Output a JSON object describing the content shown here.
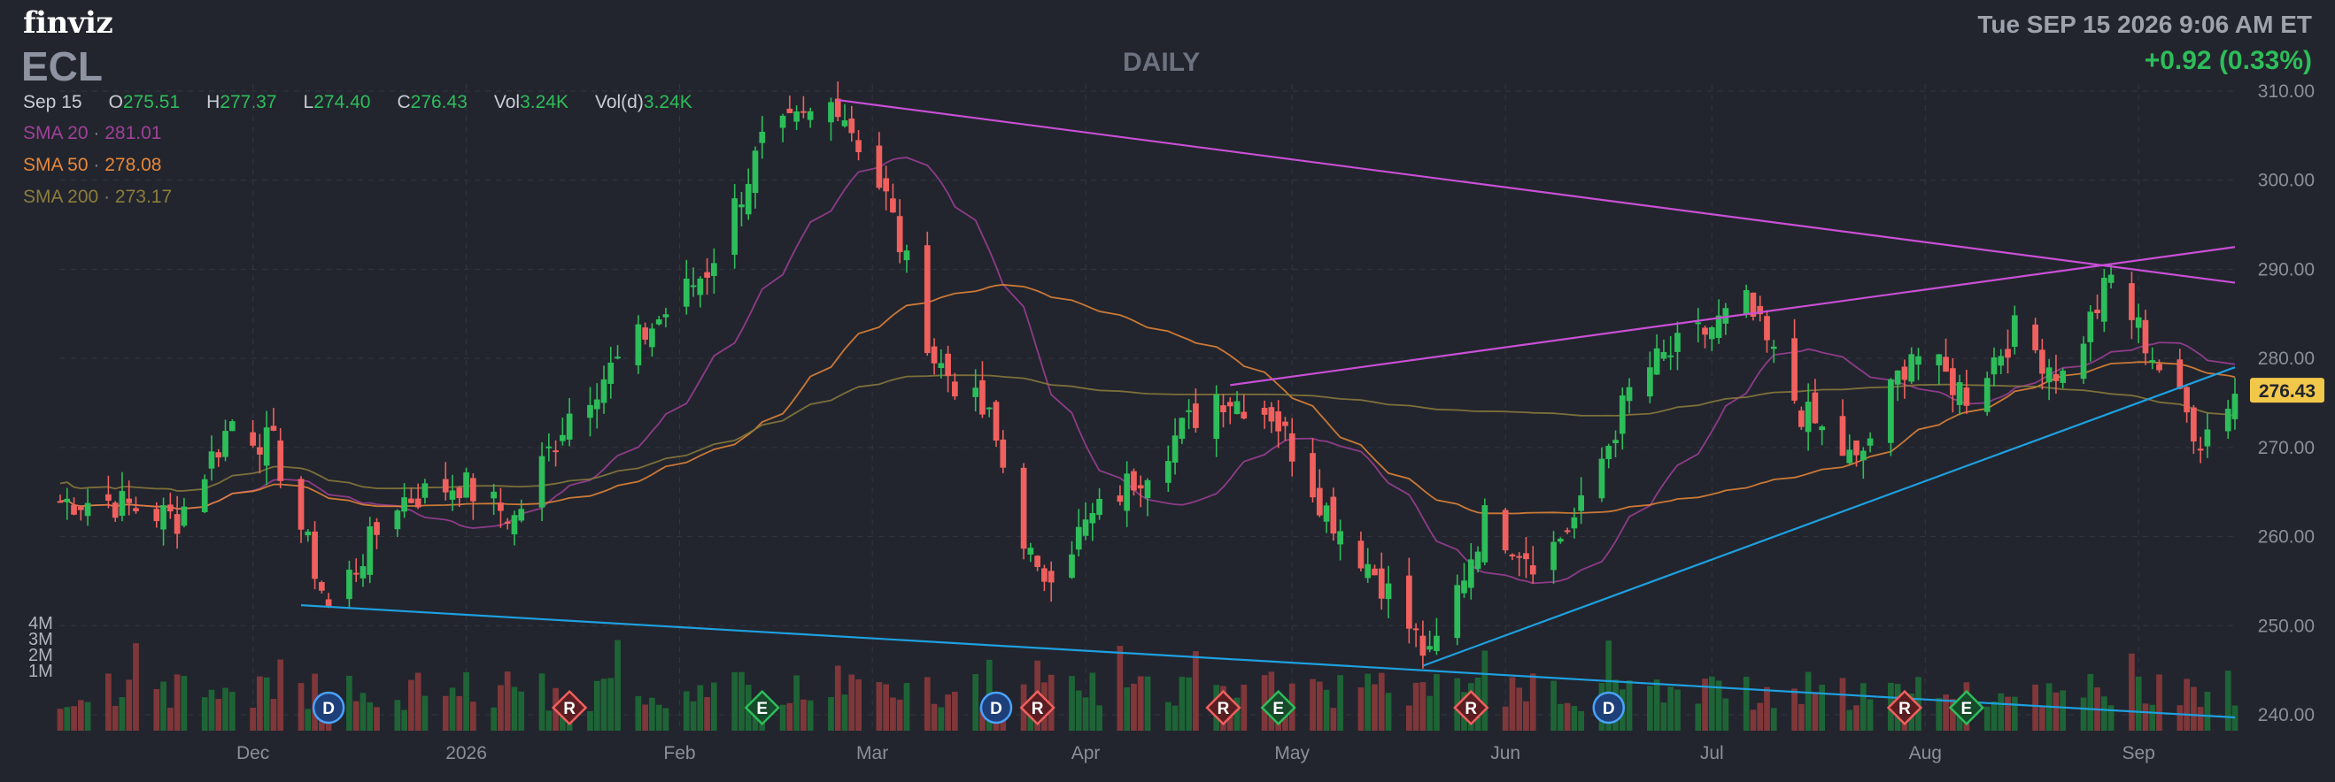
{
  "header": {
    "logo": "finviz",
    "ticker": "ECL",
    "period": "DAILY",
    "datetime": "Tue SEP 15 2026 9:06 AM ET",
    "change": "+0.92 (0.33%)"
  },
  "ohlc": {
    "date": "Sep 15",
    "open_label": "O",
    "open": "275.51",
    "high_label": "H",
    "high": "277.37",
    "low_label": "L",
    "low": "274.40",
    "close_label": "C",
    "close": "276.43",
    "vol_label": "Vol",
    "vol": "3.24K",
    "vold_label": "Vol(d)",
    "vold": "3.24K"
  },
  "indicators": [
    {
      "label": "SMA 20",
      "value": "281.01",
      "color": "#a0409a"
    },
    {
      "label": "SMA 50",
      "value": "278.08",
      "color": "#e8873a"
    },
    {
      "label": "SMA 200",
      "value": "273.17",
      "color": "#8c7d3d"
    }
  ],
  "colors": {
    "up": "#2dbd5a",
    "down": "#f0605e",
    "trend_magenta": "#c94fd6",
    "trend_blue": "#1ea0e0",
    "price_badge": "#f2c84b"
  },
  "chart_data": {
    "type": "candlestick",
    "y_ticks": [
      "310.00",
      "300.00",
      "290.00",
      "280.00",
      "270.00",
      "260.00",
      "250.00",
      "240.00"
    ],
    "ylim": [
      240,
      310
    ],
    "x_labels": [
      "Dec",
      "2026",
      "Feb",
      "Mar",
      "Apr",
      "May",
      "Jun",
      "Jul",
      "Aug",
      "Sep"
    ],
    "volume_ticks": [
      "4M",
      "3M",
      "2M",
      "1M"
    ],
    "last_price": "276.43",
    "price_series": [
      {
        "date": "2025-11-10",
        "close": 264
      },
      {
        "date": "2025-11-20",
        "close": 262
      },
      {
        "date": "2025-11-28",
        "close": 273
      },
      {
        "date": "2025-12-04",
        "close": 270
      },
      {
        "date": "2025-12-12",
        "close": 252
      },
      {
        "date": "2025-12-22",
        "close": 264
      },
      {
        "date": "2025-12-31",
        "close": 266
      },
      {
        "date": "2026-01-08",
        "close": 262
      },
      {
        "date": "2026-01-16",
        "close": 274
      },
      {
        "date": "2026-01-26",
        "close": 282
      },
      {
        "date": "2026-02-05",
        "close": 290
      },
      {
        "date": "2026-02-13",
        "close": 304
      },
      {
        "date": "2026-02-24",
        "close": 309
      },
      {
        "date": "2026-03-03",
        "close": 298
      },
      {
        "date": "2026-03-10",
        "close": 280
      },
      {
        "date": "2026-03-18",
        "close": 273
      },
      {
        "date": "2026-03-25",
        "close": 255
      },
      {
        "date": "2026-04-02",
        "close": 262
      },
      {
        "date": "2026-04-10",
        "close": 268
      },
      {
        "date": "2026-04-20",
        "close": 276
      },
      {
        "date": "2026-04-28",
        "close": 274
      },
      {
        "date": "2026-05-06",
        "close": 263
      },
      {
        "date": "2026-05-14",
        "close": 255
      },
      {
        "date": "2026-05-21",
        "close": 246
      },
      {
        "date": "2026-05-29",
        "close": 262
      },
      {
        "date": "2026-06-06",
        "close": 257
      },
      {
        "date": "2026-06-12",
        "close": 263
      },
      {
        "date": "2026-06-20",
        "close": 278
      },
      {
        "date": "2026-06-28",
        "close": 282
      },
      {
        "date": "2026-07-06",
        "close": 286
      },
      {
        "date": "2026-07-14",
        "close": 274
      },
      {
        "date": "2026-07-22",
        "close": 268
      },
      {
        "date": "2026-07-30",
        "close": 281
      },
      {
        "date": "2026-08-07",
        "close": 276
      },
      {
        "date": "2026-08-14",
        "close": 283
      },
      {
        "date": "2026-08-21",
        "close": 278
      },
      {
        "date": "2026-08-28",
        "close": 289
      },
      {
        "date": "2026-09-04",
        "close": 279
      },
      {
        "date": "2026-09-10",
        "close": 271
      },
      {
        "date": "2026-09-15",
        "close": 276.43
      }
    ],
    "trendlines": [
      {
        "color": "magenta",
        "from": {
          "date": "2026-02-24",
          "price": 309
        },
        "to": {
          "date": "2026-09-15",
          "price": 288.5
        }
      },
      {
        "color": "magenta",
        "from": {
          "date": "2026-04-22",
          "price": 277
        },
        "to": {
          "date": "2026-09-15",
          "price": 292.5
        }
      },
      {
        "color": "blue",
        "from": {
          "date": "2025-12-08",
          "price": 252.3
        },
        "to": {
          "date": "2026-09-15",
          "price": 239.7
        }
      },
      {
        "color": "blue",
        "from": {
          "date": "2026-05-20",
          "price": 245.5
        },
        "to": {
          "date": "2026-09-15",
          "price": 279
        }
      }
    ],
    "events": [
      {
        "type": "D",
        "date": "2025-12-12"
      },
      {
        "type": "R",
        "date": "2026-01-16"
      },
      {
        "type": "E",
        "date": "2026-02-13"
      },
      {
        "type": "D",
        "date": "2026-03-19"
      },
      {
        "type": "R",
        "date": "2026-03-25"
      },
      {
        "type": "R",
        "date": "2026-04-21"
      },
      {
        "type": "E",
        "date": "2026-04-29"
      },
      {
        "type": "R",
        "date": "2026-05-27"
      },
      {
        "type": "D",
        "date": "2026-06-16"
      },
      {
        "type": "R",
        "date": "2026-07-29"
      },
      {
        "type": "E",
        "date": "2026-08-07"
      }
    ]
  }
}
